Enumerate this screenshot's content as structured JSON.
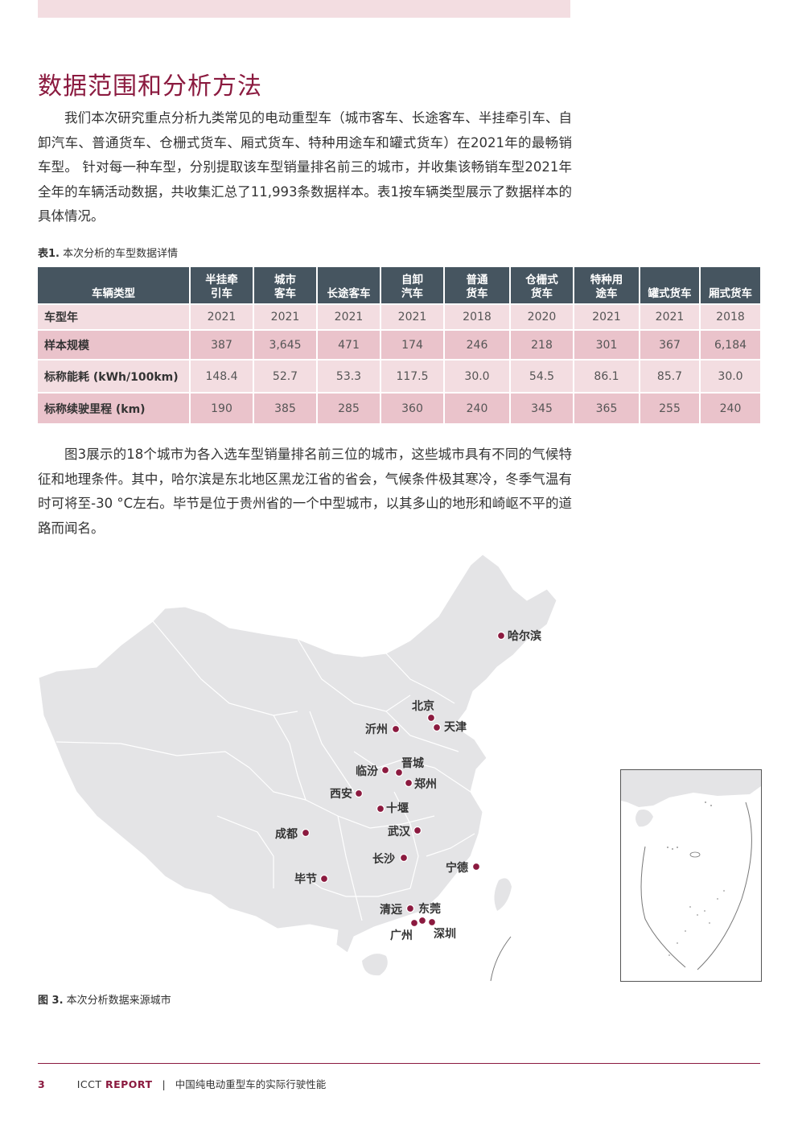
{
  "section": {
    "heading": "数据范围和分析方法",
    "paragraph1": "我们本次研究重点分析九类常见的电动重型车（城市客车、长途客车、半挂牵引车、自卸汽车、普通货车、仓栅式货车、厢式货车、特种用途车和罐式货车）在2021年的最畅销车型。 针对每一种车型，分别提取该车型销量排名前三的城市，并收集该畅销车型2021年全年的车辆活动数据，共收集汇总了11,993条数据样本。表1按车辆类型展示了数据样本的具体情况。",
    "paragraph2": "图3展示的18个城市为各入选车型销量排名前三位的城市，这些城市具有不同的气候特征和地理条件。其中，哈尔滨是东北地区黑龙江省的省会，气候条件极其寒冷，冬季气温有时可将至-30 °C左右。毕节是位于贵州省的一个中型城市，以其多山的地形和崎岖不平的道路而闻名。"
  },
  "table": {
    "caption_label": "表1.",
    "caption_text": "本次分析的车型数据详情",
    "header": {
      "label": "车辆类型",
      "columns": [
        {
          "line1": "半挂牵",
          "line2": "引车"
        },
        {
          "line1": "城市",
          "line2": "客车"
        },
        {
          "line1": "",
          "line2": "长途客车"
        },
        {
          "line1": "自卸",
          "line2": "汽车"
        },
        {
          "line1": "普通",
          "line2": "货车"
        },
        {
          "line1": "仓栅式",
          "line2": "货车"
        },
        {
          "line1": "特种用",
          "line2": "途车"
        },
        {
          "line1": "",
          "line2": "罐式货车"
        },
        {
          "line1": "",
          "line2": "厢式货车"
        }
      ]
    },
    "rows": [
      {
        "label": "车型年",
        "values": [
          "2021",
          "2021",
          "2021",
          "2021",
          "2018",
          "2020",
          "2021",
          "2021",
          "2018"
        ]
      },
      {
        "label": "样本规模",
        "values": [
          "387",
          "3,645",
          "471",
          "174",
          "246",
          "218",
          "301",
          "367",
          "6,184"
        ]
      },
      {
        "label": "标称能耗 (kWh/100km)",
        "values": [
          "148.4",
          "52.7",
          "53.3",
          "117.5",
          "30.0",
          "54.5",
          "86.1",
          "85.7",
          "30.0"
        ]
      },
      {
        "label": "标称续驶里程 (km)",
        "values": [
          "190",
          "385",
          "285",
          "360",
          "240",
          "345",
          "365",
          "255",
          "240"
        ]
      }
    ]
  },
  "map": {
    "caption_label": "图 3.",
    "caption_text": "本次分析数据来源城市",
    "cities": [
      "哈尔滨",
      "北京",
      "天津",
      "沂州",
      "晋城",
      "临汾",
      "郑州",
      "西安",
      "十堰",
      "武汉",
      "成都",
      "长沙",
      "宁德",
      "毕节",
      "清远",
      "东莞",
      "广州",
      "深圳"
    ]
  },
  "footer": {
    "page_number": "3",
    "org": "ICCT",
    "report": "REPORT",
    "separator": "|",
    "title": "中国纯电动重型车的实际行驶性能"
  },
  "colors": {
    "accent": "#8b1a3f",
    "band": "#f3dde1",
    "row_dark": "#eac3cb",
    "header_bg": "#465560",
    "map_land": "#e4e4e6"
  }
}
